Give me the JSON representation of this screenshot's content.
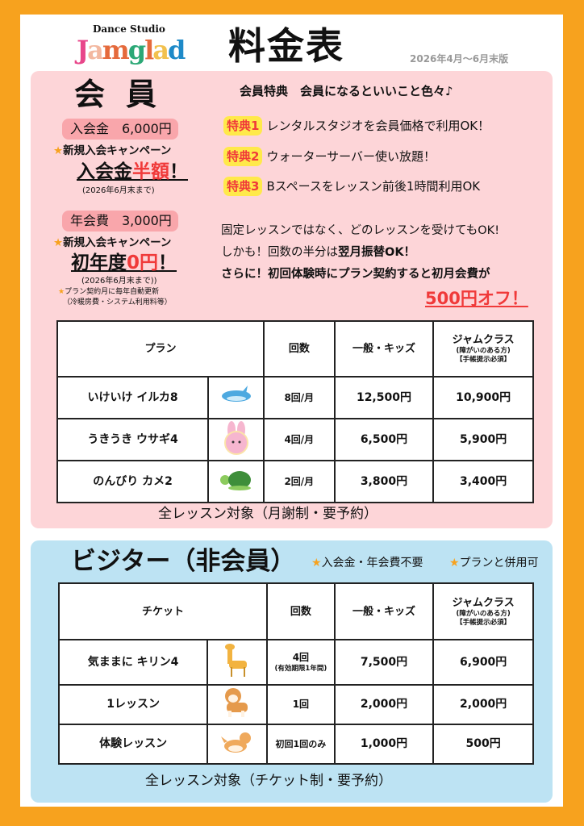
{
  "header": {
    "logo_small": "Dance Studio",
    "logo": "Jamglad",
    "logo_colors": [
      "#E8468A",
      "#F3B8A0",
      "#E56A3C",
      "#2BA876",
      "#F2C14E",
      "#1E8AC8"
    ],
    "title": "料金表",
    "edition": "2026年4月〜6月末版"
  },
  "member": {
    "heading": "会員",
    "entry_fee": "入会金　6,000円",
    "campaign1": "新規入会キャンペーン",
    "half_a": "入会金",
    "half_b": "半額",
    "half_c": "！",
    "until1": "(2026年6月末まで)",
    "annual_fee": "年会費　3,000円",
    "campaign2": "新規入会キャンペーン",
    "zero_a": "初年度",
    "zero_b": "0円",
    "zero_c": "！",
    "until2": "(2026年6月末まで))",
    "note1": "プラン契約月に毎年自動更新",
    "note2": "（冷暖房費・システム利用料等）",
    "benefits_title": "会員特典　会員になるといいこと色々♪",
    "benefits": [
      {
        "tag": "特典1",
        "text": "レンタルスタジオを会員価格で利用OK！"
      },
      {
        "tag": "特典2",
        "text": "ウォーターサーバー使い放題！"
      },
      {
        "tag": "特典3",
        "text": "Bスペースをレッスン前後1時間利用OK"
      }
    ],
    "para1": "固定レッスンではなく、どのレッスンを受けてもOK!",
    "para2a": "しかも！回数の半分は",
    "para2b": "翌月振替OK！",
    "para3": "さらに！初回体験時にプラン契約すると初月会費が",
    "off": "500円オフ！",
    "table": {
      "headers": {
        "plan": "プラン",
        "count": "回数",
        "general": "一般・キッズ",
        "jam": "ジャムクラス",
        "jam_sub1": "(障がいのある方)",
        "jam_sub2": "【手帳提示必須】"
      },
      "rows": [
        {
          "name": "いけいけ イルカ8",
          "icon": "dolphin-icon",
          "count": "8回/月",
          "general": "12,500円",
          "jam": "10,900円"
        },
        {
          "name": "うきうき ウサギ4",
          "icon": "rabbit-icon",
          "count": "4回/月",
          "general": "6,500円",
          "jam": "5,900円"
        },
        {
          "name": "のんびり カメ2",
          "icon": "turtle-icon",
          "count": "2回/月",
          "general": "3,800円",
          "jam": "3,400円"
        }
      ]
    },
    "footer": "全レッスン対象（月謝制・要予約）"
  },
  "visitor": {
    "heading": "ビジター（非会員）",
    "note1": "入会金・年会費不要",
    "note2": "プランと併用可",
    "table": {
      "headers": {
        "ticket": "チケット",
        "count": "回数",
        "general": "一般・キッズ",
        "jam": "ジャムクラス",
        "jam_sub1": "(障がいのある方)",
        "jam_sub2": "【手帳提示必須】"
      },
      "rows": [
        {
          "name": "気ままに キリン4",
          "icon": "giraffe-icon",
          "count": "4回",
          "count_sub": "(有効期限1年間)",
          "general": "7,500円",
          "jam": "6,900円"
        },
        {
          "name": "1レッスン",
          "icon": "shiba-dog-icon",
          "count": "1回",
          "general": "2,000円",
          "jam": "2,000円"
        },
        {
          "name": "体験レッスン",
          "icon": "corgi-dog-icon",
          "count": "初回1回のみ",
          "general": "1,000円",
          "jam": "500円"
        }
      ]
    },
    "footer": "全レッスン対象（チケット制・要予約）"
  }
}
